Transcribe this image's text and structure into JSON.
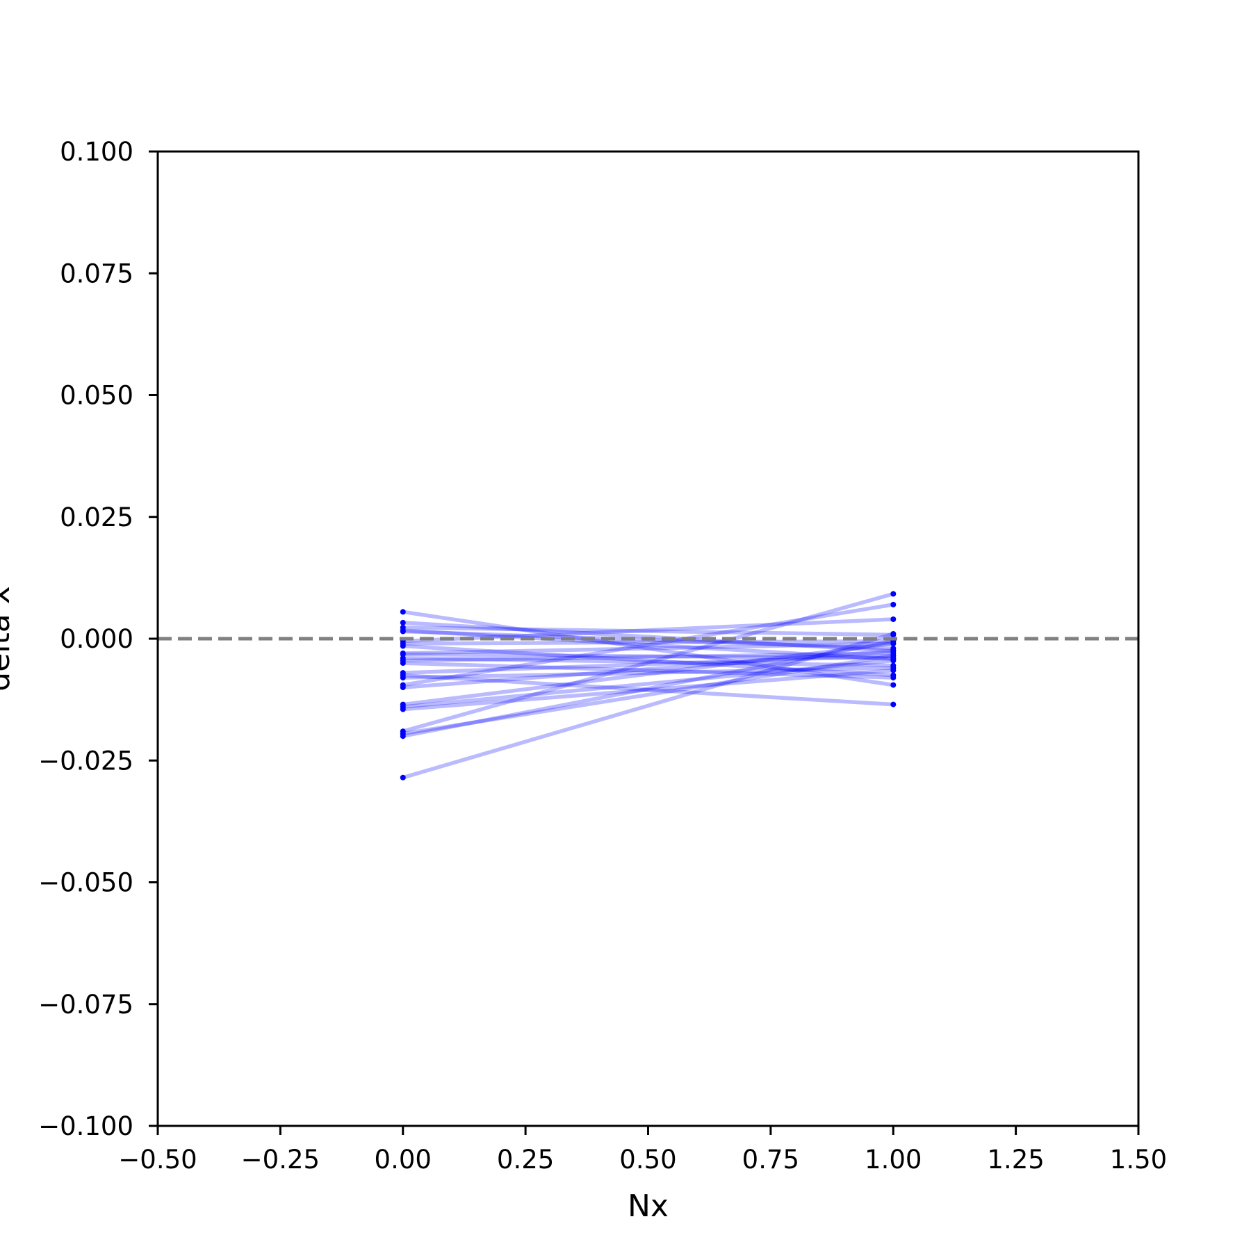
{
  "chart_data": {
    "type": "line",
    "xlabel": "Nx",
    "ylabel": "delta x",
    "xlim": [
      -0.5,
      1.5
    ],
    "ylim": [
      -0.1,
      0.1
    ],
    "xticks": [
      -0.5,
      -0.25,
      0.0,
      0.25,
      0.5,
      0.75,
      1.0,
      1.25,
      1.5
    ],
    "xtick_labels": [
      "−0.50",
      "−0.25",
      "0.00",
      "0.25",
      "0.50",
      "0.75",
      "1.00",
      "1.25",
      "1.50"
    ],
    "yticks": [
      -0.1,
      -0.075,
      -0.05,
      -0.025,
      0.0,
      0.025,
      0.05,
      0.075,
      0.1
    ],
    "ytick_labels": [
      "−0.100",
      "−0.075",
      "−0.050",
      "−0.025",
      "0.000",
      "0.025",
      "0.050",
      "0.075",
      "0.100"
    ],
    "grid": false,
    "reference_line": {
      "y": 0.0,
      "style": "dashed",
      "color": "#808080"
    },
    "line_color": "#0000ff",
    "line_opacity": 0.27,
    "x": [
      0,
      1
    ],
    "series": [
      {
        "values": [
          0.0055,
          -0.0095
        ]
      },
      {
        "values": [
          0.0033,
          -0.0025
        ]
      },
      {
        "values": [
          0.0023,
          0.0008
        ]
      },
      {
        "values": [
          0.0017,
          -0.0042
        ]
      },
      {
        "values": [
          0.0015,
          -0.002
        ]
      },
      {
        "values": [
          -0.0005,
          0.004
        ]
      },
      {
        "values": [
          -0.001,
          -0.0005
        ]
      },
      {
        "values": [
          -0.0015,
          -0.0075
        ]
      },
      {
        "values": [
          -0.003,
          -0.001
        ]
      },
      {
        "values": [
          -0.0032,
          -0.004
        ]
      },
      {
        "values": [
          -0.004,
          -0.0055
        ]
      },
      {
        "values": [
          -0.0045,
          -0.003
        ]
      },
      {
        "values": [
          -0.005,
          -0.008
        ]
      },
      {
        "values": [
          -0.007,
          -0.0035
        ]
      },
      {
        "values": [
          -0.0075,
          -0.0135
        ]
      },
      {
        "values": [
          -0.008,
          -0.006
        ]
      },
      {
        "values": [
          -0.0095,
          0.007
        ]
      },
      {
        "values": [
          -0.01,
          -0.0025
        ]
      },
      {
        "values": [
          -0.0135,
          -0.001
        ]
      },
      {
        "values": [
          -0.014,
          -0.0045
        ]
      },
      {
        "values": [
          -0.0145,
          -0.0065
        ]
      },
      {
        "values": [
          -0.019,
          0.0092
        ]
      },
      {
        "values": [
          -0.0195,
          -0.0035
        ]
      },
      {
        "values": [
          -0.02,
          -0.0005
        ]
      },
      {
        "values": [
          -0.0285,
          0.001
        ]
      }
    ]
  }
}
